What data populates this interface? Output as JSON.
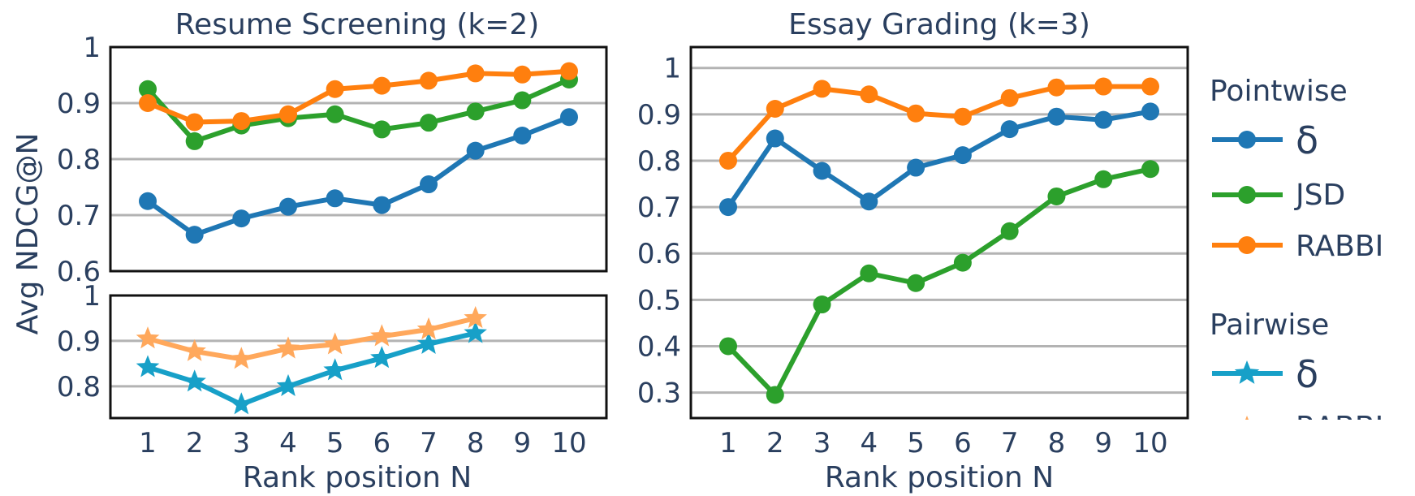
{
  "legend": {
    "pointwise_title": "Pointwise",
    "pairwise_title": "Pairwise",
    "items": [
      "δ",
      "JSD",
      "RABBI",
      "δ",
      "RABBI"
    ]
  },
  "colors": {
    "delta_pointwise": "#1f77b4",
    "jsd": "#2ca02c",
    "rabbi_pointwise": "#ff7f0e",
    "delta_pairwise": "#17a0c8",
    "rabbi_pairwise": "#ffa85c",
    "text": "#2a3f5f",
    "grid": "#b3b3b3"
  },
  "chart_data": [
    {
      "type": "line",
      "title": "Resume Screening (k=2)",
      "xlabel": "Rank position N",
      "ylabel": "Avg NDCG@N",
      "ylim": [
        0.6,
        1.0
      ],
      "yticks": [
        "0.6",
        "0.7",
        "0.8",
        "0.9",
        "1"
      ],
      "x": [
        1,
        2,
        3,
        4,
        5,
        6,
        7,
        8,
        9,
        10
      ],
      "xticks": [
        "1",
        "2",
        "3",
        "4",
        "5",
        "6",
        "7",
        "8",
        "9",
        "10"
      ],
      "grid": true,
      "series": [
        {
          "name": "δ",
          "group": "Pointwise",
          "marker": "circle",
          "values": [
            0.725,
            0.665,
            0.694,
            0.715,
            0.73,
            0.718,
            0.755,
            0.815,
            0.842,
            0.875
          ]
        },
        {
          "name": "JSD",
          "group": "Pointwise",
          "marker": "circle",
          "values": [
            0.925,
            0.832,
            0.86,
            0.873,
            0.88,
            0.853,
            0.865,
            0.885,
            0.905,
            0.942
          ]
        },
        {
          "name": "RABBI",
          "group": "Pointwise",
          "marker": "circle",
          "values": [
            0.9,
            0.866,
            0.868,
            0.88,
            0.925,
            0.931,
            0.94,
            0.953,
            0.951,
            0.957
          ]
        }
      ]
    },
    {
      "type": "line",
      "xlabel": "Rank position N",
      "ylim": [
        0.73,
        1.0
      ],
      "yticks": [
        "0.8",
        "0.9",
        "1"
      ],
      "x": [
        1,
        2,
        3,
        4,
        5,
        6,
        7,
        8
      ],
      "xticks": [
        "1",
        "2",
        "3",
        "4",
        "5",
        "6",
        "7",
        "8",
        "9",
        "10"
      ],
      "grid": true,
      "series": [
        {
          "name": "δ",
          "group": "Pairwise",
          "marker": "star",
          "values": [
            0.842,
            0.81,
            0.76,
            0.8,
            0.835,
            0.862,
            0.893,
            0.917
          ]
        },
        {
          "name": "RABBI",
          "group": "Pairwise",
          "marker": "star",
          "values": [
            0.905,
            0.877,
            0.86,
            0.883,
            0.892,
            0.91,
            0.925,
            0.95
          ]
        }
      ]
    },
    {
      "type": "line",
      "title": "Essay Grading (k=3)",
      "xlabel": "Rank position N",
      "ylim": [
        0.245,
        1.045
      ],
      "yticks": [
        "0.3",
        "0.4",
        "0.5",
        "0.6",
        "0.7",
        "0.8",
        "0.9",
        "1"
      ],
      "x": [
        1,
        2,
        3,
        4,
        5,
        6,
        7,
        8,
        9,
        10
      ],
      "xticks": [
        "1",
        "2",
        "3",
        "4",
        "5",
        "6",
        "7",
        "8",
        "9",
        "10"
      ],
      "grid": true,
      "series": [
        {
          "name": "δ",
          "group": "Pointwise",
          "marker": "circle",
          "values": [
            0.7,
            0.848,
            0.778,
            0.712,
            0.785,
            0.812,
            0.868,
            0.895,
            0.888,
            0.906
          ]
        },
        {
          "name": "JSD",
          "group": "Pointwise",
          "marker": "circle",
          "values": [
            0.4,
            0.295,
            0.49,
            0.557,
            0.536,
            0.58,
            0.648,
            0.723,
            0.76,
            0.782
          ]
        },
        {
          "name": "RABBI",
          "group": "Pointwise",
          "marker": "circle",
          "values": [
            0.8,
            0.912,
            0.955,
            0.943,
            0.902,
            0.895,
            0.935,
            0.958,
            0.96,
            0.96
          ]
        }
      ]
    }
  ]
}
